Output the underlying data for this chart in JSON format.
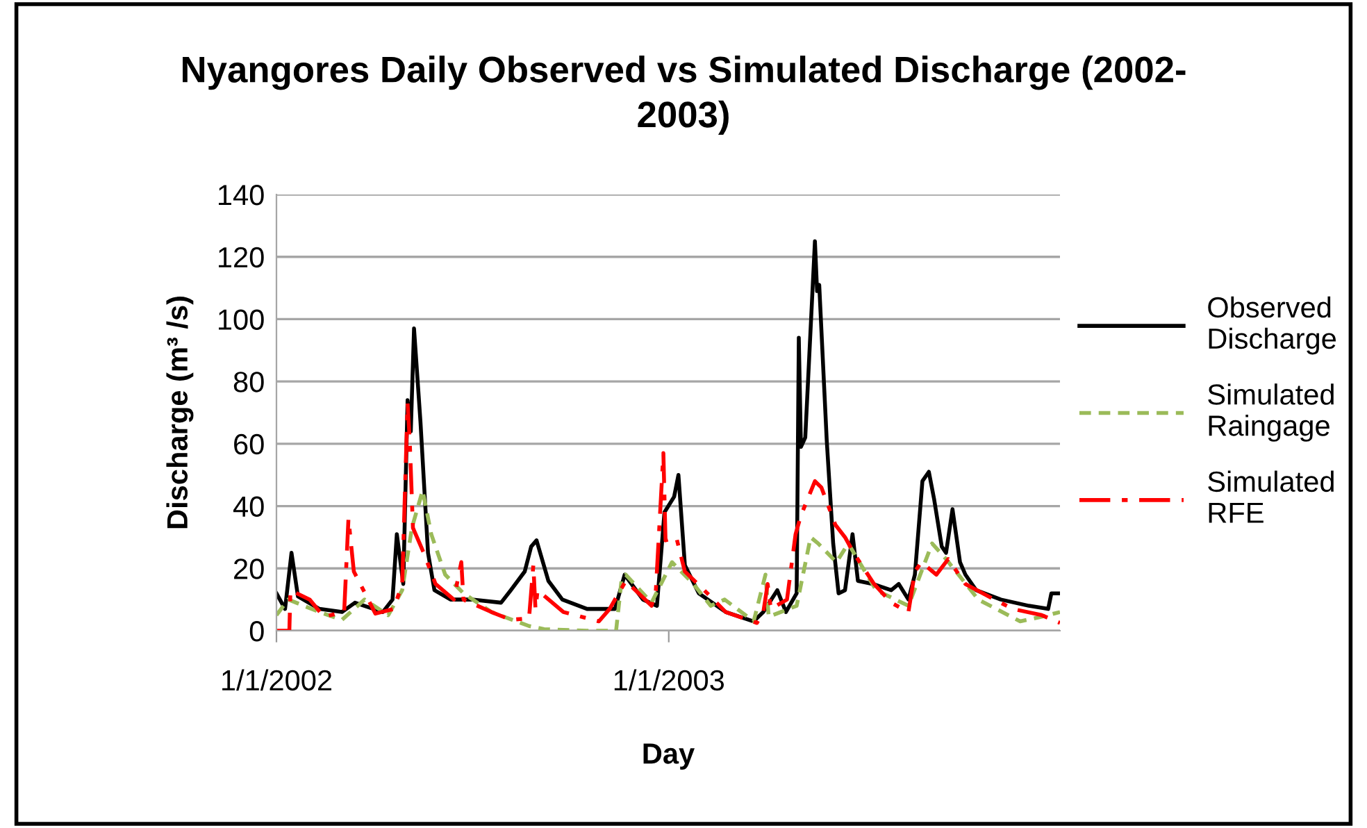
{
  "chart_data": {
    "type": "line",
    "title": "Nyangores Daily Observed vs Simulated Discharge (2002-\n2003)",
    "xlabel": "Day",
    "ylabel": "Discharge (m³ /s)",
    "xlim": [
      "2002-01-01",
      "2003-12-31"
    ],
    "xticks": [
      {
        "value": "2002-01-01",
        "label": "1/1/2002"
      },
      {
        "value": "2003-01-01",
        "label": "1/1/2003"
      }
    ],
    "ylim": [
      0,
      140
    ],
    "yticks": [
      0,
      20,
      40,
      60,
      80,
      100,
      120,
      140
    ],
    "grid": "y",
    "legend": "right",
    "marker": "none",
    "series": [
      {
        "name": "Observed Discharge",
        "color": "#000000",
        "line_style": "solid",
        "x": [
          "2002-01-01",
          "2002-01-09",
          "2002-01-15",
          "2002-01-21",
          "2002-02-10",
          "2002-03-03",
          "2002-03-15",
          "2002-04-10",
          "2002-04-19",
          "2002-04-23",
          "2002-04-29",
          "2002-05-03",
          "2002-05-06",
          "2002-05-09",
          "2002-05-15",
          "2002-05-22",
          "2002-05-28",
          "2002-06-12",
          "2002-07-03",
          "2002-07-29",
          "2002-08-07",
          "2002-08-20",
          "2002-08-26",
          "2002-08-31",
          "2002-09-11",
          "2002-09-24",
          "2002-10-17",
          "2002-11-12",
          "2002-11-21",
          "2002-12-08",
          "2002-12-21",
          "2002-12-28",
          "2003-01-06",
          "2003-01-10",
          "2003-01-16",
          "2003-01-29",
          "2003-02-23",
          "2003-03-21",
          "2003-03-30",
          "2003-04-12",
          "2003-04-20",
          "2003-04-30",
          "2003-05-02",
          "2003-05-04",
          "2003-05-08",
          "2003-05-17",
          "2003-05-19",
          "2003-05-21",
          "2003-05-28",
          "2003-06-03",
          "2003-06-08",
          "2003-06-14",
          "2003-06-21",
          "2003-06-26",
          "2003-07-10",
          "2003-07-27",
          "2003-08-03",
          "2003-08-12",
          "2003-08-18",
          "2003-08-25",
          "2003-08-31",
          "2003-09-05",
          "2003-09-12",
          "2003-09-16",
          "2003-09-22",
          "2003-09-29",
          "2003-10-04",
          "2003-10-14",
          "2003-11-06",
          "2003-12-02",
          "2003-12-20",
          "2003-12-23",
          "2003-12-31"
        ],
        "values": [
          12,
          7,
          25,
          11,
          7,
          6,
          9,
          6,
          10,
          31,
          15,
          74,
          64,
          97,
          67,
          25,
          13,
          10,
          10,
          9,
          13,
          19,
          27,
          29,
          16,
          10,
          7,
          7,
          18,
          10,
          8,
          38,
          43,
          50,
          21,
          12,
          6,
          3,
          6,
          13,
          6,
          12,
          94,
          59,
          62,
          125,
          109,
          111,
          61,
          28,
          12,
          13,
          31,
          16,
          15,
          13,
          15,
          10,
          18,
          48,
          51,
          42,
          27,
          25,
          39,
          22,
          18,
          13,
          10,
          8,
          7,
          12,
          12
        ]
      },
      {
        "name": "Simulated Raingage",
        "color": "#9bbb59",
        "line_style": "dashed",
        "x": [
          "2002-01-01",
          "2002-01-12",
          "2002-02-10",
          "2002-03-03",
          "2002-03-24",
          "2002-04-15",
          "2002-04-28",
          "2002-05-07",
          "2002-05-17",
          "2002-05-25",
          "2002-06-07",
          "2002-06-24",
          "2002-07-20",
          "2002-08-24",
          "2002-09-07",
          "2002-10-17",
          "2002-11-13",
          "2002-11-18",
          "2002-11-22",
          "2002-12-16",
          "2003-01-04",
          "2003-01-24",
          "2003-02-09",
          "2003-02-22",
          "2003-03-21",
          "2003-04-01",
          "2003-04-04",
          "2003-04-30",
          "2003-05-13",
          "2003-05-20",
          "2003-06-06",
          "2003-06-17",
          "2003-07-13",
          "2003-08-12",
          "2003-09-03",
          "2003-09-16",
          "2003-10-16",
          "2003-11-24",
          "2003-12-14",
          "2003-12-31"
        ],
        "values": [
          5,
          10,
          6,
          3.5,
          10,
          5,
          13,
          33,
          45,
          31,
          18,
          12,
          6,
          1.5,
          0.5,
          0,
          0,
          16,
          18,
          9,
          22,
          15,
          8,
          10,
          3,
          18,
          4.5,
          8,
          30,
          28,
          22,
          28,
          13,
          8,
          28,
          23,
          10,
          3,
          4.5,
          6
        ]
      },
      {
        "name": "Simulated RFE",
        "color": "#ff0000",
        "line_style": "dashdot",
        "x": [
          "2002-01-01",
          "2002-01-13",
          "2002-01-14",
          "2002-02-01",
          "2002-02-14",
          "2002-03-05",
          "2002-03-09",
          "2002-03-14",
          "2002-03-20",
          "2002-04-03",
          "2002-04-20",
          "2002-04-28",
          "2002-05-03",
          "2002-05-05",
          "2002-05-08",
          "2002-05-18",
          "2002-05-29",
          "2002-06-15",
          "2002-06-22",
          "2002-06-24",
          "2002-07-20",
          "2002-08-07",
          "2002-08-24",
          "2002-08-28",
          "2002-08-30",
          "2002-09-01",
          "2002-09-25",
          "2002-10-28",
          "2002-11-07",
          "2002-11-22",
          "2002-12-16",
          "2002-12-20",
          "2002-12-27",
          "2002-12-29",
          "2003-01-08",
          "2003-01-16",
          "2003-02-03",
          "2003-02-23",
          "2003-03-24",
          "2003-03-30",
          "2003-04-03",
          "2003-04-06",
          "2003-04-21",
          "2003-04-29",
          "2003-05-04",
          "2003-05-17",
          "2003-05-23",
          "2003-06-05",
          "2003-06-14",
          "2003-06-22",
          "2003-07-11",
          "2003-07-27",
          "2003-08-12",
          "2003-08-18",
          "2003-08-24",
          "2003-09-07",
          "2003-09-18",
          "2003-10-04",
          "2003-10-31",
          "2003-11-17",
          "2003-12-14",
          "2003-12-31"
        ],
        "values": [
          0,
          0,
          13,
          10,
          4.5,
          6,
          36,
          19,
          15,
          5.5,
          7,
          15,
          73,
          61,
          33,
          25,
          15,
          10,
          22,
          10,
          6,
          3.5,
          4,
          21,
          7,
          13,
          6,
          3,
          7,
          16,
          8,
          13,
          57,
          29,
          30,
          19,
          13,
          6,
          2.5,
          6,
          15,
          7,
          10,
          31,
          37,
          48,
          46,
          34,
          30,
          25,
          15,
          9,
          6,
          19,
          22,
          18,
          23,
          15,
          10,
          7,
          5,
          2.5
        ]
      }
    ]
  }
}
